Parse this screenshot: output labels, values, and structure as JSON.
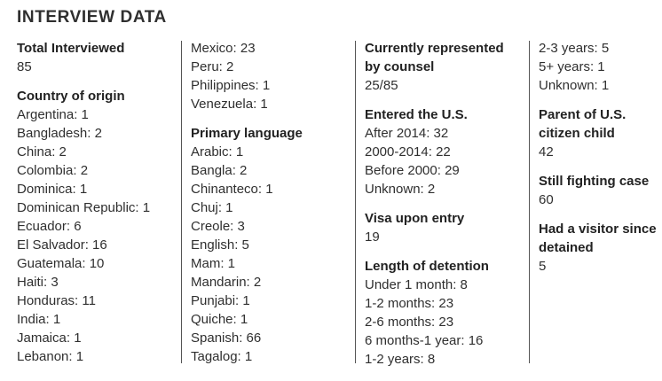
{
  "title": "INTERVIEW DATA",
  "total_interviewed": {
    "label": "Total Interviewed",
    "value": "85"
  },
  "country_of_origin": {
    "label": "Country of origin",
    "items": [
      "Argentina: 1",
      "Bangladesh: 2",
      "China: 2",
      "Colombia: 2",
      "Dominica: 1",
      "Dominican Republic: 1",
      "Ecuador: 6",
      "El Salvador: 16",
      "Guatemala: 10",
      "Haiti: 3",
      "Honduras: 11",
      "India: 1",
      "Jamaica: 1",
      "Lebanon: 1",
      "Mexico: 23",
      "Peru: 2",
      "Philippines: 1",
      "Venezuela: 1"
    ]
  },
  "primary_language": {
    "label": "Primary language",
    "items": [
      "Arabic: 1",
      "Bangla: 2",
      "Chinanteco: 1",
      "Chuj: 1",
      "Creole: 3",
      "English: 5",
      "Mam: 1",
      "Mandarin: 2",
      "Punjabi: 1",
      "Quiche: 1",
      "Spanish: 66",
      "Tagalog: 1"
    ]
  },
  "represented": {
    "label": "Currently represented by counsel",
    "value": "25/85"
  },
  "entered_us": {
    "label": "Entered the U.S.",
    "items": [
      "After 2014: 32",
      "2000-2014: 22",
      "Before 2000: 29",
      "Unknown: 2"
    ]
  },
  "visa": {
    "label": "Visa upon entry",
    "value": "19"
  },
  "length_of_detention": {
    "label": "Length of detention",
    "items": [
      "Under 1 month: 8",
      "1-2 months: 23",
      "2-6 months: 23",
      "6 months-1 year: 16",
      "1-2 years: 8",
      "2-3 years: 5",
      "5+ years: 1",
      "Unknown: 1"
    ]
  },
  "parent": {
    "label": "Parent of U.S. citizen child",
    "value": "42"
  },
  "still_fighting": {
    "label": "Still fighting case",
    "value": "60"
  },
  "visitor": {
    "label": "Had a visitor since detained",
    "value": "5"
  }
}
